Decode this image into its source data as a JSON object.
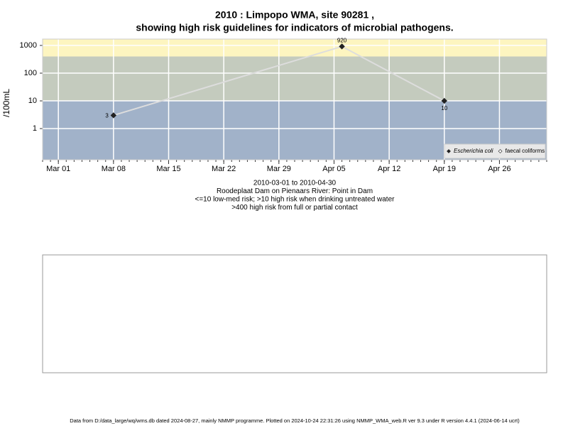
{
  "chart_data": {
    "type": "line",
    "title": "2010 : Limpopo WMA, site 90281 ,",
    "subtitle": "showing high risk guidelines for indicators of microbial pathogens.",
    "y_label": "/100mL",
    "captions": [
      "2010-03-01 to 2010-04-30",
      "Roodeplaat Dam on Pienaars River: Point in Dam",
      "<=10 low-med risk; >10 high risk when drinking untreated water",
      ">400 high risk from full or partial contact"
    ],
    "footer": "Data from D:/data_large/wq/wms.db dated 2024-08-27, mainly NMMP programme. Plotted on 2024-10-24 22:31:26 using NMMP_WMA_web.R ver 9.3 under R version 4.4.1 (2024-06-14 ucrt)",
    "x": [
      "2010-03-08",
      "2010-04-06",
      "2010-04-19"
    ],
    "series": [
      {
        "name": "Escherichia coli",
        "color": "#dddddd",
        "marker_color": "#222222",
        "values": [
          3,
          920,
          10
        ]
      },
      {
        "name": "faecal coliforms",
        "color": "#dddddd",
        "marker_color": "#ffffff",
        "values": [
          null,
          null,
          null
        ]
      }
    ],
    "xlim": [
      "2010-02-27",
      "2010-05-02"
    ],
    "xticks": [
      {
        "value": "2010-03-01",
        "label": "Mar 01"
      },
      {
        "value": "2010-03-08",
        "label": "Mar 08"
      },
      {
        "value": "2010-03-15",
        "label": "Mar 15"
      },
      {
        "value": "2010-03-22",
        "label": "Mar 22"
      },
      {
        "value": "2010-03-29",
        "label": "Mar 29"
      },
      {
        "value": "2010-04-05",
        "label": "Apr 05"
      },
      {
        "value": "2010-04-12",
        "label": "Apr 12"
      },
      {
        "value": "2010-04-19",
        "label": "Apr 19"
      },
      {
        "value": "2010-04-26",
        "label": "Apr 26"
      }
    ],
    "ylim": [
      0.075,
      1700
    ],
    "yticks": [
      1,
      10,
      100,
      1000
    ],
    "log_y": true,
    "grid": true,
    "thresholds": [
      10,
      400
    ],
    "band_colors": [
      "#a1b2c9",
      "#c4cbbe",
      "#fdf5c0"
    ],
    "legend": "bottom-right"
  }
}
